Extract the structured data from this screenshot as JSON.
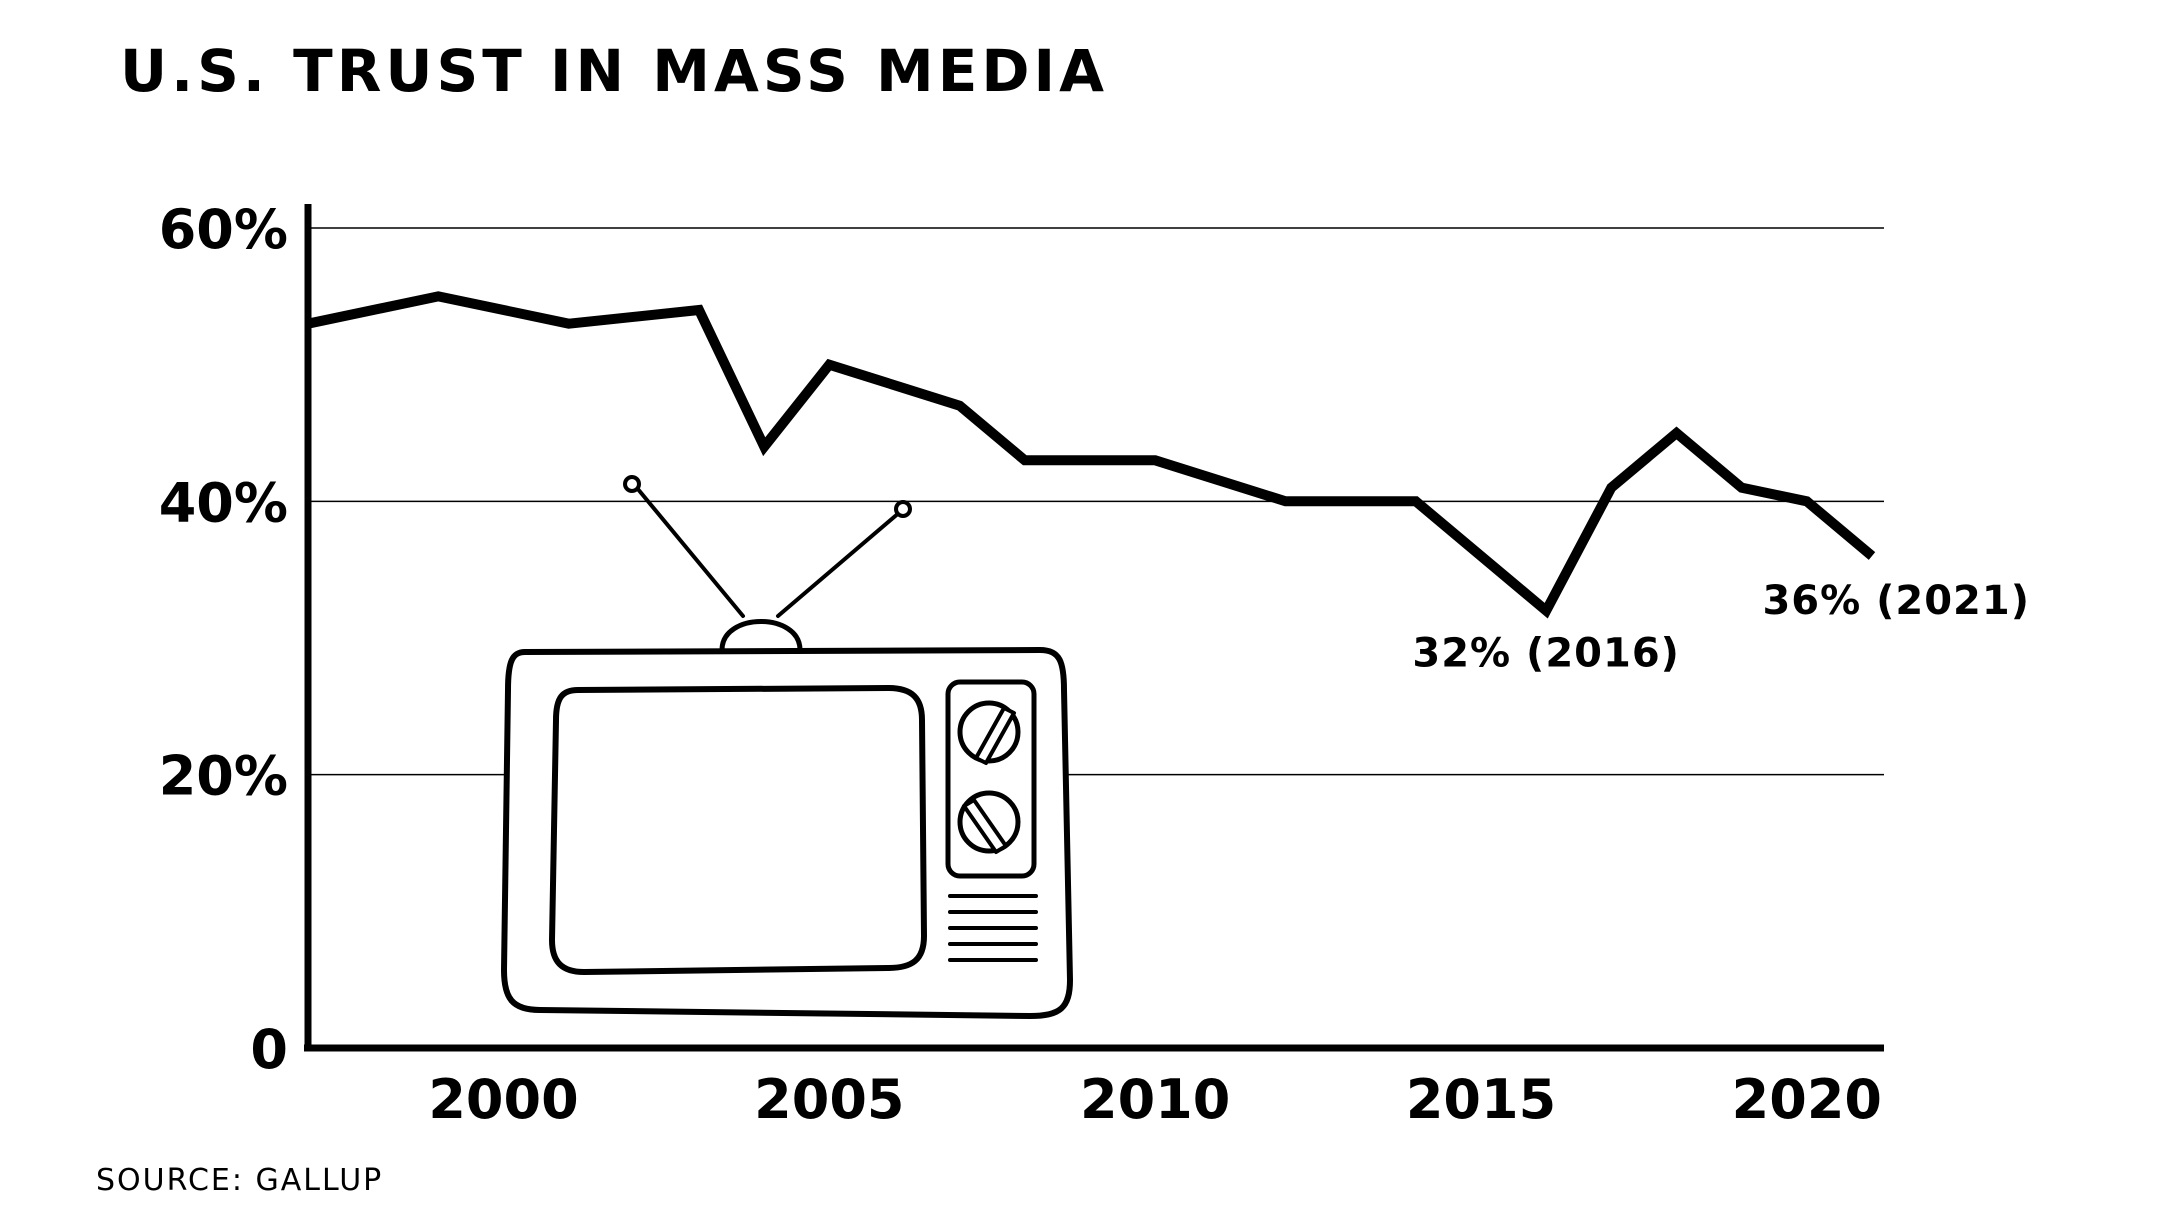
{
  "title": "U.S. TRUST IN MASS MEDIA",
  "source": "SOURCE: GALLUP",
  "chart_data": {
    "type": "line",
    "title": "U.S. TRUST IN MASS MEDIA",
    "xlabel": "",
    "ylabel": "",
    "xlim": [
      1997,
      2021
    ],
    "ylim": [
      0,
      60
    ],
    "grid": true,
    "x_ticks": [
      2000,
      2005,
      2010,
      2015,
      2020
    ],
    "x_tick_labels": [
      "2000",
      "2005",
      "2010",
      "2015",
      "2020"
    ],
    "y_ticks": [
      0,
      20,
      40,
      60
    ],
    "y_tick_labels": [
      "0",
      "20%",
      "40%",
      "60%"
    ],
    "x": [
      1997,
      1999,
      2001,
      2003,
      2004,
      2005,
      2007,
      2008,
      2010,
      2012,
      2014,
      2016,
      2017,
      2018,
      2019,
      2020,
      2021
    ],
    "series": [
      {
        "values": [
          53,
          55,
          53,
          54,
          44,
          50,
          47,
          43,
          43,
          40,
          40,
          32,
          41,
          45,
          41,
          40,
          36
        ]
      }
    ],
    "annotations": [
      {
        "x": 2016,
        "y": 32,
        "text": "32% (2016)"
      },
      {
        "x": 2021,
        "y": 36,
        "text": "36% (2021)"
      }
    ],
    "illustration": "television-icon"
  }
}
